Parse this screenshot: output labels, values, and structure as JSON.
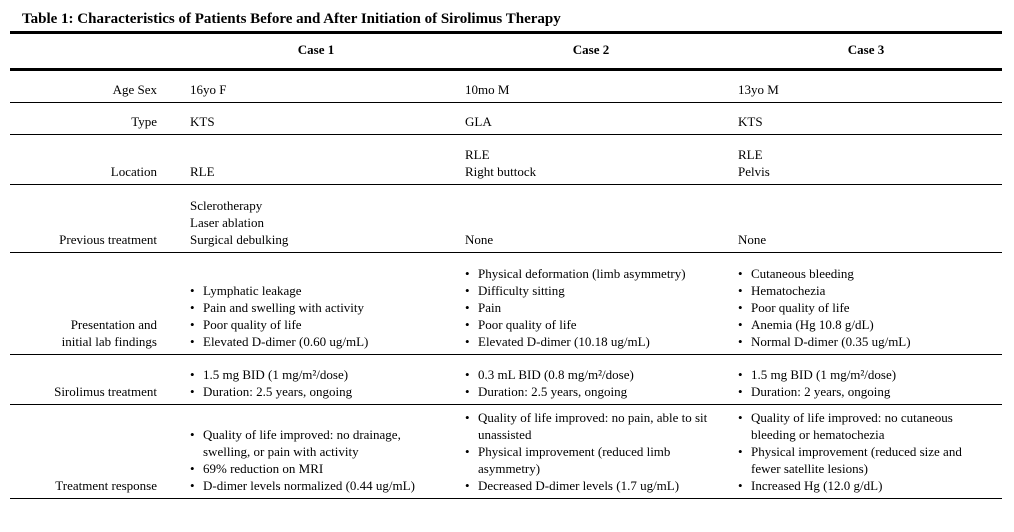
{
  "title": "Table 1: Characteristics of Patients Before and After Initiation of Sirolimus Therapy",
  "table": {
    "bullet_icon": "•",
    "columns": [
      "Case 1",
      "Case 2",
      "Case 3"
    ],
    "rows": [
      {
        "label": "Age Sex",
        "label_lines": [
          "Age Sex"
        ],
        "style": "plain",
        "cells": [
          [
            "16yo F"
          ],
          [
            "10mo M"
          ],
          [
            "13yo M"
          ]
        ]
      },
      {
        "label": "Type",
        "label_lines": [
          "Type"
        ],
        "style": "plain",
        "cells": [
          [
            "KTS"
          ],
          [
            "GLA"
          ],
          [
            "KTS"
          ]
        ]
      },
      {
        "label": "Location",
        "label_lines": [
          "Location"
        ],
        "style": "plain",
        "cells": [
          [
            "RLE"
          ],
          [
            "RLE",
            "Right buttock"
          ],
          [
            "RLE",
            "Pelvis"
          ]
        ]
      },
      {
        "label": "Previous treatment",
        "label_lines": [
          "Previous treatment"
        ],
        "style": "plain",
        "cells": [
          [
            "Sclerotherapy",
            "Laser ablation",
            "Surgical debulking"
          ],
          [
            "None"
          ],
          [
            "None"
          ]
        ]
      },
      {
        "label": "Presentation and initial lab findings",
        "label_lines": [
          "Presentation and",
          "initial lab findings"
        ],
        "style": "bullets",
        "cells": [
          [
            "Lymphatic leakage",
            "Pain and swelling with activity",
            "Poor quality of life",
            "Elevated D-dimer (0.60 ug/mL)"
          ],
          [
            "Physical deformation (limb asymmetry)",
            "Difficulty sitting",
            "Pain",
            "Poor quality of life",
            "Elevated D-dimer (10.18 ug/mL)"
          ],
          [
            "Cutaneous bleeding",
            "Hematochezia",
            "Poor quality of life",
            "Anemia (Hg 10.8 g/dL)",
            "Normal D-dimer (0.35 ug/mL)"
          ]
        ]
      },
      {
        "label": "Sirolimus treatment",
        "label_lines": [
          "Sirolimus treatment"
        ],
        "style": "bullets",
        "cells": [
          [
            "1.5 mg BID (1 mg/m²/dose)",
            "Duration: 2.5 years, ongoing"
          ],
          [
            "0.3 mL BID (0.8 mg/m²/dose)",
            "Duration: 2.5 years, ongoing"
          ],
          [
            "1.5 mg BID (1 mg/m²/dose)",
            "Duration: 2 years, ongoing"
          ]
        ]
      },
      {
        "label": "Treatment response",
        "label_lines": [
          "Treatment response"
        ],
        "style": "bullets",
        "cells": [
          [
            "Quality of life improved: no drainage, swelling, or pain with activity",
            "69% reduction on MRI",
            "D-dimer levels normalized (0.44 ug/mL)"
          ],
          [
            "Quality of life improved: no pain, able to sit unassisted",
            "Physical improvement (reduced limb asymmetry)",
            "Decreased D-dimer levels (1.7 ug/mL)"
          ],
          [
            "Quality of life improved: no cutaneous bleeding or hematochezia",
            "Physical improvement (reduced size and fewer satellite lesions)",
            "Increased Hg (12.0 g/dL)"
          ]
        ]
      }
    ]
  }
}
